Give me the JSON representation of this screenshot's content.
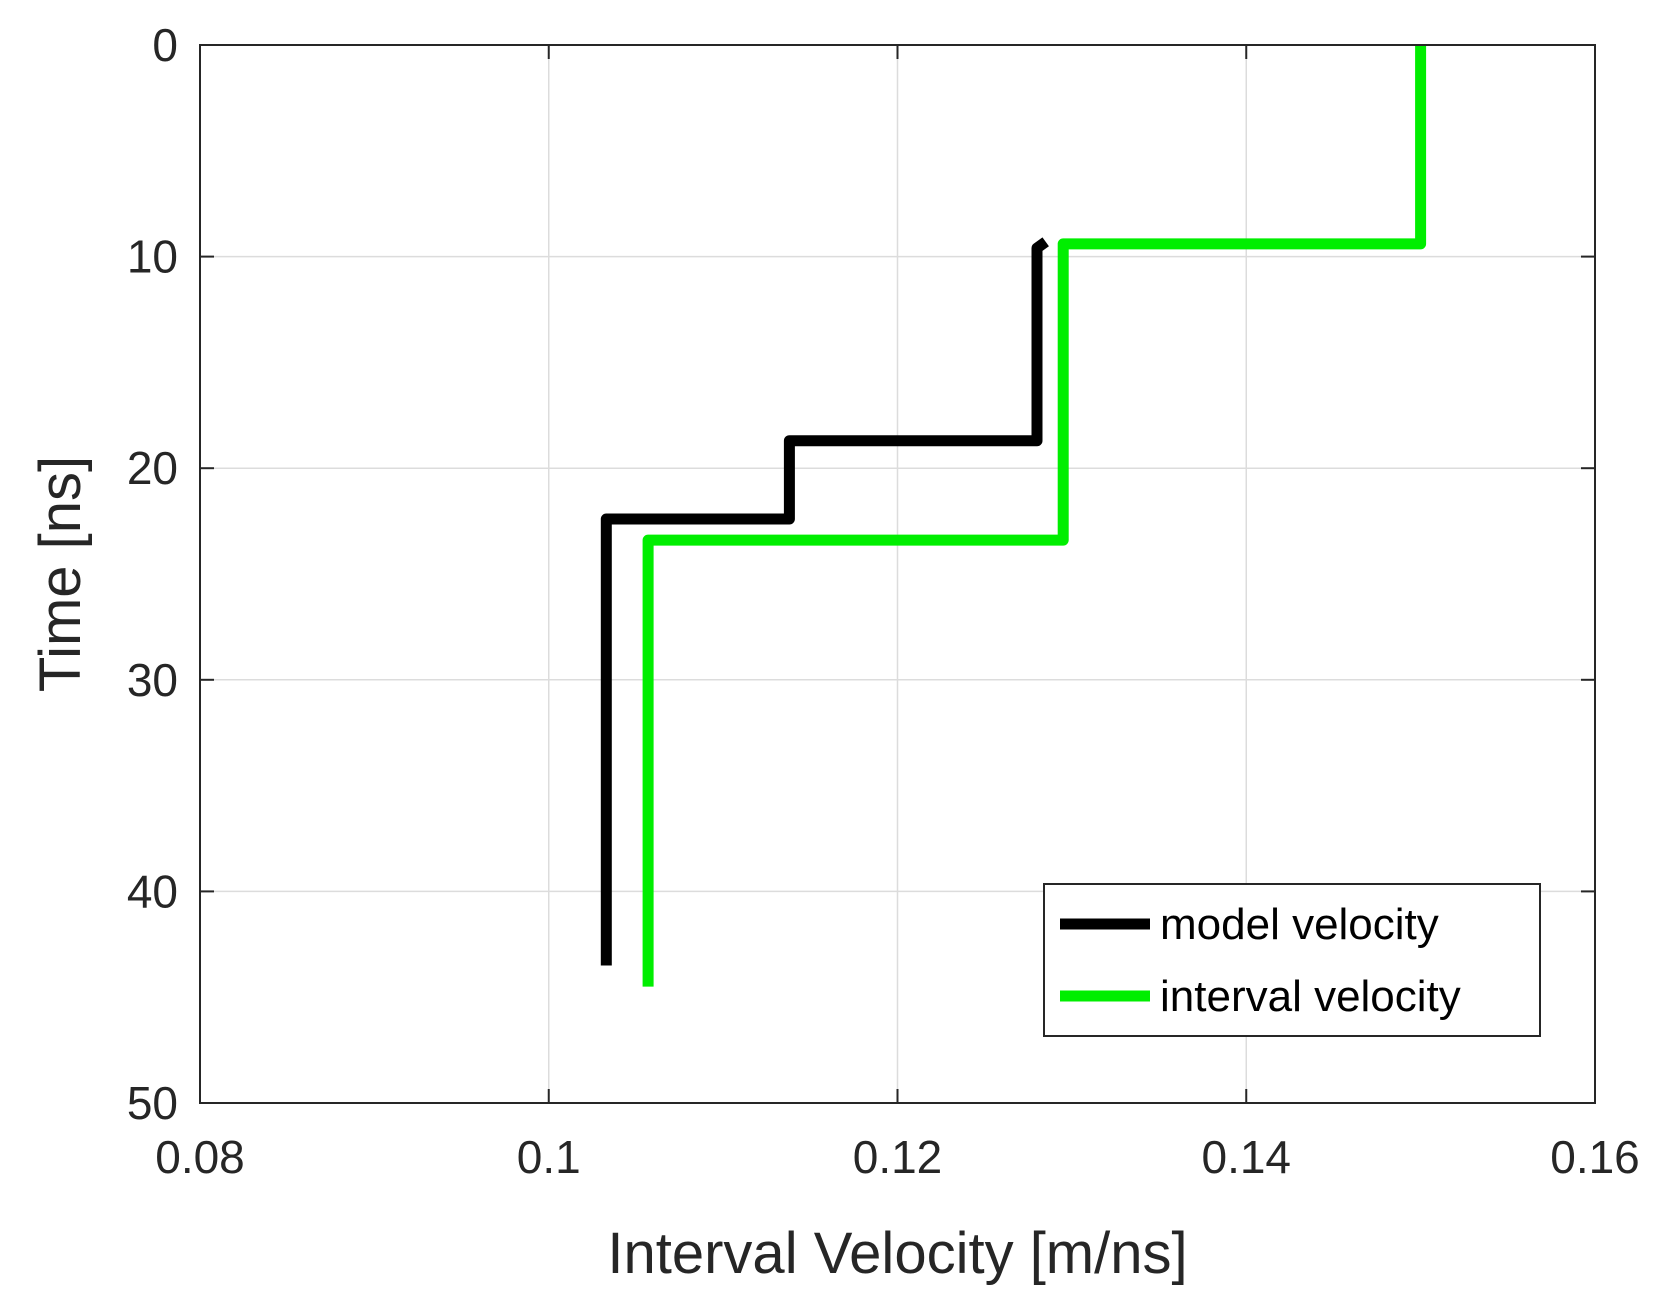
{
  "chart_data": {
    "type": "line",
    "title": "",
    "xlabel": "Interval Velocity [m/ns]",
    "ylabel": "Time [ns]",
    "xlim": [
      0.08,
      0.16
    ],
    "ylim": [
      0,
      50
    ],
    "y_reversed": true,
    "grid": true,
    "legend_position": "bottom-right",
    "xticks": [
      "0.08",
      "0.1",
      "0.12",
      "0.14",
      "0.16"
    ],
    "yticks": [
      "0",
      "10",
      "20",
      "30",
      "40",
      "50"
    ],
    "xtick_values": [
      0.08,
      0.1,
      0.12,
      0.14,
      0.16
    ],
    "ytick_values": [
      0,
      10,
      20,
      30,
      40,
      50
    ],
    "series": [
      {
        "name": "model velocity",
        "color": "#000000",
        "x": [
          0.1285,
          0.1285,
          0.128,
          0.128,
          0.1138,
          0.1138,
          0.1033,
          0.1033
        ],
        "y": [
          9.3,
          9.3,
          9.6,
          18.7,
          18.7,
          22.4,
          22.4,
          43.5
        ]
      },
      {
        "name": "interval velocity",
        "color": "#00ee00",
        "x": [
          0.15,
          0.15,
          0.1295,
          0.1295,
          0.1057,
          0.1057
        ],
        "y": [
          0,
          9.4,
          9.4,
          23.4,
          23.4,
          44.5
        ]
      }
    ]
  }
}
